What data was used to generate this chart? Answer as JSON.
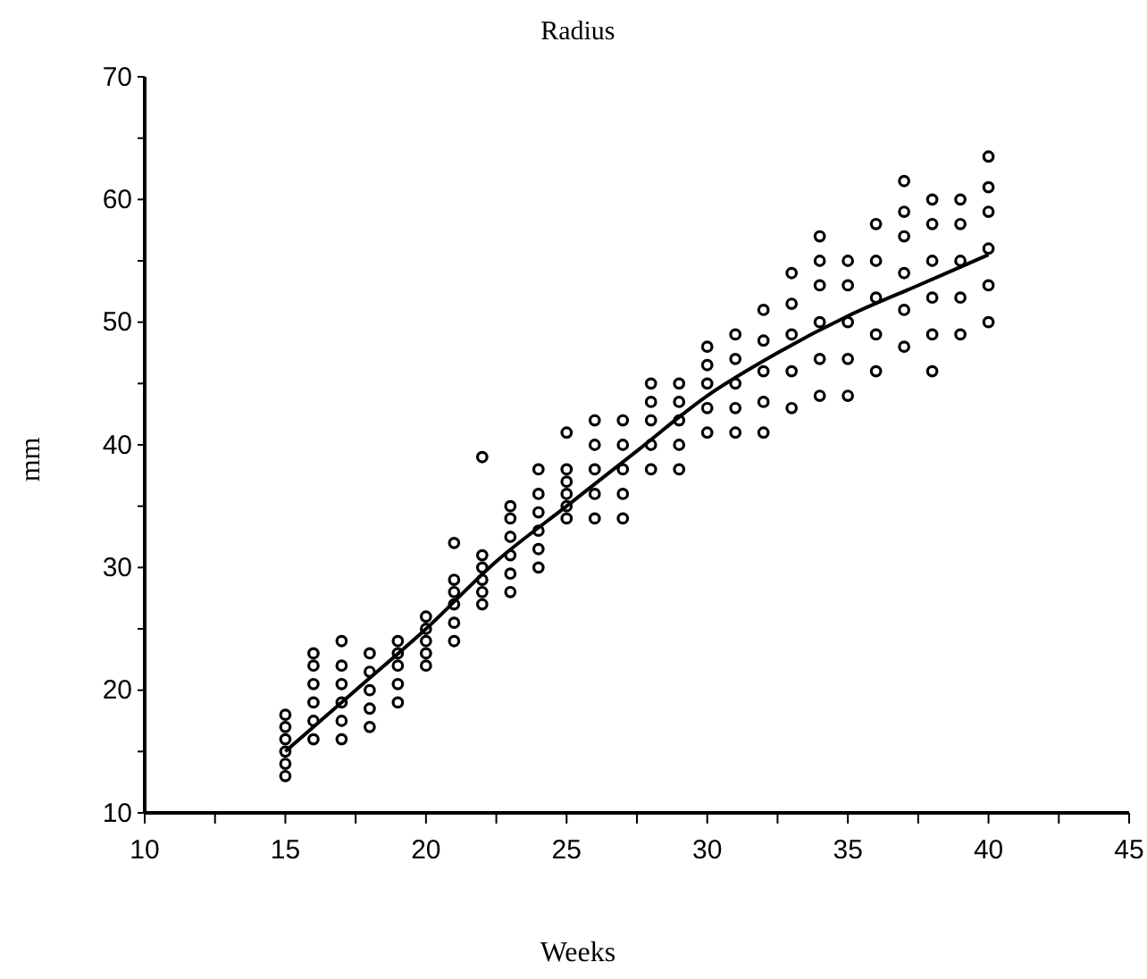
{
  "chart_data": {
    "type": "scatter",
    "title": "Radius",
    "xlabel": "Weeks",
    "ylabel": "mm",
    "xlim": [
      10,
      45
    ],
    "ylim": [
      10,
      70
    ],
    "xticks": [
      10,
      {
        "value": 12.5,
        "label": null
      },
      15,
      {
        "value": 17.5,
        "label": null
      },
      20,
      {
        "value": 22.5,
        "label": null
      },
      25,
      {
        "value": 27.5,
        "label": null
      },
      30,
      {
        "value": 32.5,
        "label": null
      },
      35,
      {
        "value": 37.5,
        "label": null
      },
      40,
      {
        "value": 42.5,
        "label": null
      },
      45
    ],
    "yticks": [
      10,
      {
        "value": 15,
        "label": null
      },
      20,
      {
        "value": 25,
        "label": null
      },
      30,
      {
        "value": 35,
        "label": null
      },
      40,
      {
        "value": 45,
        "label": null
      },
      50,
      {
        "value": 55,
        "label": null
      },
      60,
      {
        "value": 65,
        "label": null
      },
      70
    ],
    "grid": false,
    "marker": "circle",
    "series": [
      {
        "color": "#000000",
        "x": [
          15,
          15,
          15,
          15,
          15,
          15,
          16,
          16,
          16,
          16,
          16,
          16,
          17,
          17,
          17,
          17,
          17,
          17,
          18,
          18,
          18,
          18,
          18,
          19,
          19,
          19,
          19,
          19,
          20,
          20,
          20,
          20,
          20,
          21,
          21,
          21,
          21,
          21,
          21,
          22,
          22,
          22,
          22,
          22,
          22,
          23,
          23,
          23,
          23,
          23,
          23,
          24,
          24,
          24,
          24,
          24,
          24,
          25,
          25,
          25,
          25,
          25,
          25,
          26,
          26,
          26,
          26,
          26,
          27,
          27,
          27,
          27,
          27,
          28,
          28,
          28,
          28,
          28,
          29,
          29,
          29,
          29,
          29,
          30,
          30,
          30,
          30,
          30,
          31,
          31,
          31,
          31,
          31,
          32,
          32,
          32,
          32,
          32,
          33,
          33,
          33,
          33,
          33,
          34,
          34,
          34,
          34,
          34,
          34,
          35,
          35,
          35,
          35,
          35,
          36,
          36,
          36,
          36,
          36,
          37,
          37,
          37,
          37,
          37,
          37,
          38,
          38,
          38,
          38,
          38,
          38,
          39,
          39,
          39,
          39,
          39,
          40,
          40,
          40,
          40,
          40,
          40
        ],
        "values": [
          13,
          14,
          15,
          16,
          17,
          18,
          16,
          17.5,
          19,
          20.5,
          22,
          23,
          16,
          17.5,
          19,
          20.5,
          22,
          24,
          17,
          18.5,
          20,
          21.5,
          23,
          19,
          20.5,
          22,
          23,
          24,
          22,
          23,
          24,
          25,
          26,
          24,
          25.5,
          27,
          28,
          29,
          32,
          27,
          28,
          29,
          30,
          31,
          39,
          28,
          29.5,
          31,
          32.5,
          34,
          35,
          30,
          31.5,
          33,
          34.5,
          36,
          38,
          34,
          35,
          36,
          37,
          38,
          41,
          34,
          36,
          38,
          40,
          42,
          34,
          36,
          38,
          40,
          42,
          38,
          40,
          42,
          43.5,
          45,
          38,
          40,
          42,
          43.5,
          45,
          41,
          43,
          45,
          46.5,
          48,
          41,
          43,
          45,
          47,
          49,
          41,
          43.5,
          46,
          48.5,
          51,
          43,
          46,
          49,
          51.5,
          54,
          44,
          47,
          50,
          53,
          55,
          57,
          44,
          47,
          50,
          53,
          55,
          46,
          49,
          52,
          55,
          58,
          48,
          51,
          54,
          57,
          59,
          61.5,
          46,
          49,
          52,
          55,
          58,
          60,
          49,
          52,
          55,
          58,
          60,
          50,
          53,
          56,
          59,
          61,
          63.5
        ]
      },
      {
        "type": "line",
        "color": "#000000",
        "marker": "none",
        "line_style": "solid",
        "x": [
          15,
          17.5,
          20,
          22.5,
          25,
          27.5,
          30,
          32.5,
          35,
          37.5,
          40
        ],
        "values": [
          15,
          20,
          25,
          30.5,
          35,
          39.5,
          44,
          47.5,
          50.5,
          53,
          55.5
        ]
      }
    ]
  }
}
